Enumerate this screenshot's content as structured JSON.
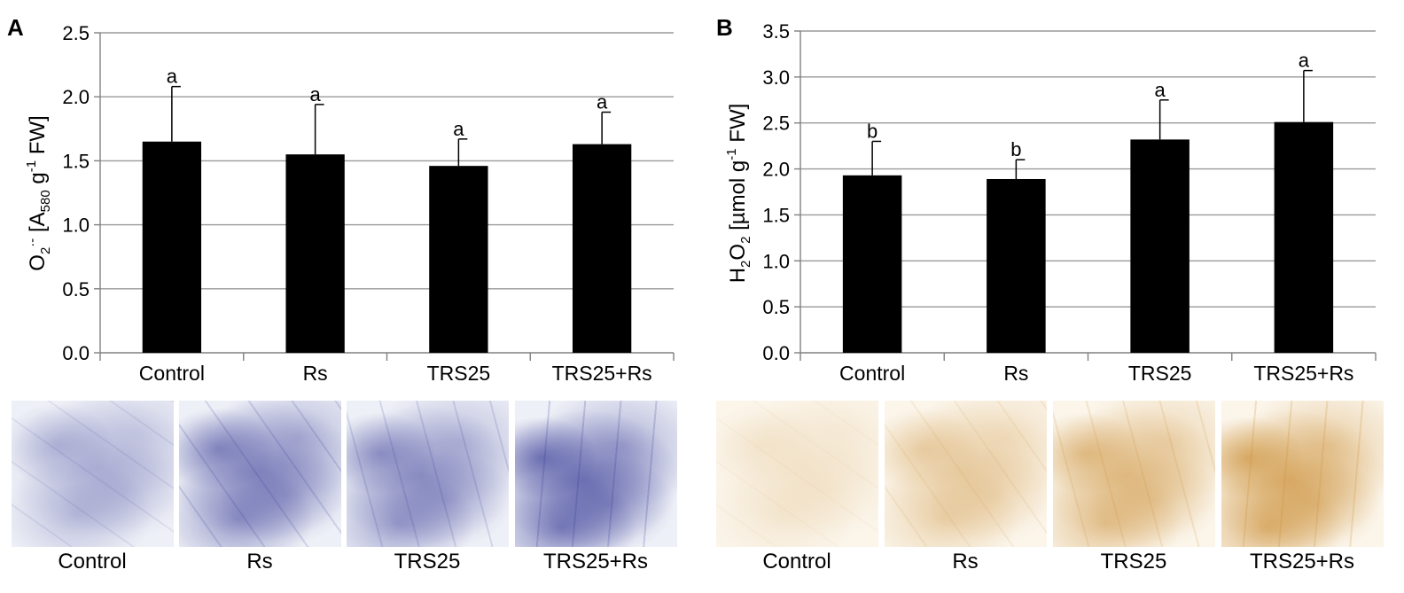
{
  "panels": [
    {
      "letter": "A",
      "photo_captions": [
        "Control",
        "Rs",
        "TRS25",
        "TRS25+Rs"
      ],
      "stain_color": "#2b2f8f"
    },
    {
      "letter": "B",
      "photo_captions": [
        "Control",
        "Rs",
        "TRS25",
        "TRS25+Rs"
      ],
      "stain_color": "#c98a2e"
    }
  ],
  "chart_data": [
    {
      "type": "bar",
      "categories": [
        "Control",
        "Rs",
        "TRS25",
        "TRS25+Rs"
      ],
      "values": [
        1.65,
        1.55,
        1.46,
        1.63
      ],
      "errors": [
        0.43,
        0.39,
        0.21,
        0.25
      ],
      "significance": [
        "a",
        "a",
        "a",
        "a"
      ],
      "ylim": [
        0,
        2.5
      ],
      "yticks": [
        "0.0",
        "0.5",
        "1.0",
        "1.5",
        "2.0",
        "2.5"
      ],
      "ylabel": "O2·- [A580 g-1 FW]",
      "grid": true,
      "bar_color": "#000000"
    },
    {
      "type": "bar",
      "categories": [
        "Control",
        "Rs",
        "TRS25",
        "TRS25+Rs"
      ],
      "values": [
        1.93,
        1.89,
        2.32,
        2.51
      ],
      "errors": [
        0.37,
        0.21,
        0.43,
        0.56
      ],
      "significance": [
        "b",
        "b",
        "a",
        "a"
      ],
      "ylim": [
        0,
        3.5
      ],
      "yticks": [
        "0.0",
        "0.5",
        "1.0",
        "1.5",
        "2.0",
        "2.5",
        "3.0",
        "3.5"
      ],
      "ylabel": "H2O2 [µmol g-1 FW]",
      "grid": true,
      "bar_color": "#000000"
    }
  ]
}
